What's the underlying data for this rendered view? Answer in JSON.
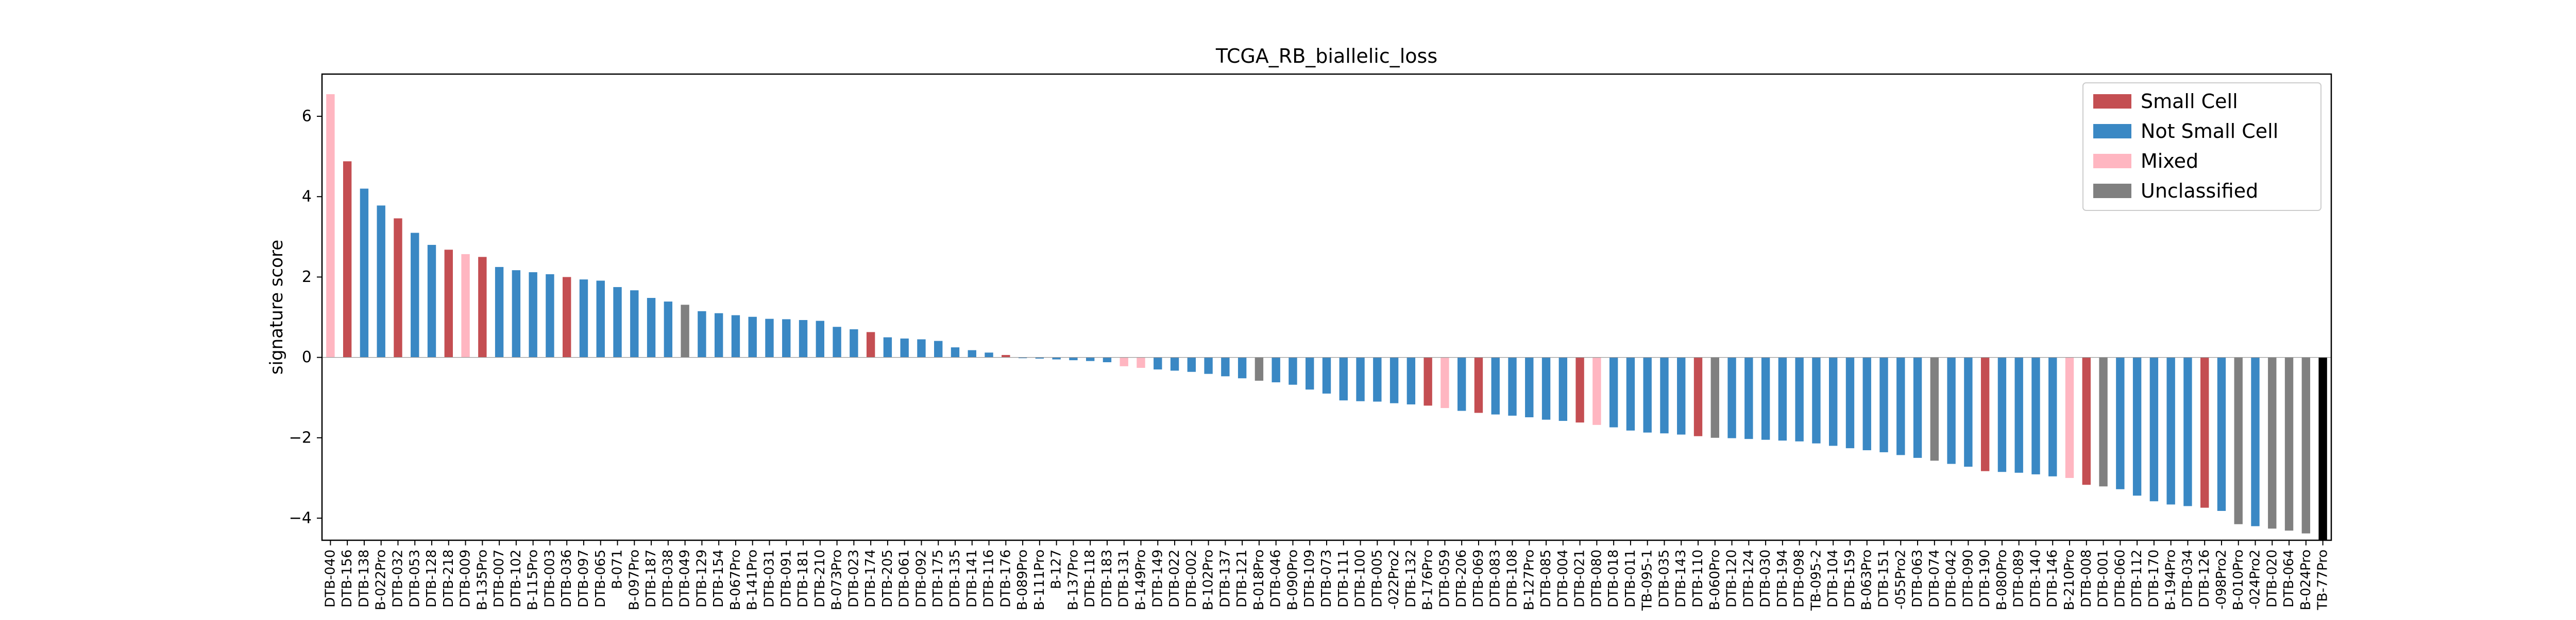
{
  "chart_data": {
    "type": "bar",
    "title": "TCGA_RB_biallelic_loss",
    "xlabel": "",
    "ylabel": "signature score",
    "ylim": [
      -4.55,
      7.05
    ],
    "yticks": [
      -4,
      -2,
      0,
      2,
      4,
      6
    ],
    "grid": false,
    "legend_position": "top-right",
    "legend": [
      {
        "label": "Small Cell",
        "color": "#c44e52"
      },
      {
        "label": "Not Small Cell",
        "color": "#3a88c4"
      },
      {
        "label": "Mixed",
        "color": "#ffb6c1"
      },
      {
        "label": "Unclassified",
        "color": "#808080"
      }
    ],
    "colors": {
      "small_cell": "#c44e52",
      "not_small_cell": "#3a88c4",
      "mixed": "#ffb6c1",
      "unclassified": "#808080"
    },
    "categories": [
      "DTB-040",
      "DTB-156",
      "DTB-138",
      "B-022Pro",
      "DTB-032",
      "DTB-053",
      "DTB-128",
      "DTB-218",
      "DTB-009",
      "B-135Pro",
      "DTB-007",
      "DTB-102",
      "B-115Pro",
      "DTB-003",
      "DTB-036",
      "DTB-097",
      "DTB-065",
      "B-071",
      "B-097Pro",
      "DTB-187",
      "DTB-038",
      "DTB-049",
      "DTB-129",
      "DTB-154",
      "B-067Pro",
      "B-141Pro",
      "DTB-031",
      "DTB-091",
      "DTB-181",
      "DTB-210",
      "B-073Pro",
      "DTB-023",
      "DTB-174",
      "DTB-205",
      "DTB-061",
      "DTB-092",
      "DTB-175",
      "DTB-135",
      "DTB-141",
      "DTB-116",
      "DTB-176",
      "B-089Pro",
      "B-111Pro",
      "B-127",
      "B-137Pro",
      "DTB-118",
      "DTB-183",
      "DTB-131",
      "B-149Pro",
      "DTB-149",
      "DTB-022",
      "DTB-002",
      "B-102Pro",
      "DTB-137",
      "DTB-121",
      "B-018Pro",
      "DTB-046",
      "B-090Pro",
      "DTB-109",
      "DTB-073",
      "DTB-111",
      "DTB-100",
      "DTB-005",
      "-022Pro2",
      "DTB-132",
      "B-176Pro",
      "DTB-059",
      "DTB-206",
      "DTB-069",
      "DTB-083",
      "DTB-108",
      "B-127Pro",
      "DTB-085",
      "DTB-004",
      "DTB-021",
      "DTB-080",
      "DTB-018",
      "DTB-011",
      "TB-095-1",
      "DTB-035",
      "DTB-143",
      "DTB-110",
      "B-060Pro",
      "DTB-120",
      "DTB-124",
      "DTB-030",
      "DTB-194",
      "DTB-098",
      "TB-095-2",
      "DTB-104",
      "DTB-159",
      "B-063Pro",
      "DTB-151",
      "-055Pro2",
      "DTB-063",
      "DTB-074",
      "DTB-042",
      "DTB-090",
      "DTB-190",
      "B-080Pro",
      "DTB-089",
      "DTB-140",
      "DTB-146",
      "B-210Pro",
      "DTB-008",
      "DTB-001",
      "DTB-060",
      "DTB-112",
      "DTB-170",
      "B-194Pro",
      "DTB-034",
      "DTB-126",
      "-098Pro2",
      "B-010Pro",
      "-024Pro2",
      "DTB-020",
      "DTB-064",
      "B-024Pro",
      "TB-77Pro"
    ],
    "values": [
      6.55,
      4.88,
      4.2,
      3.78,
      3.46,
      3.1,
      2.8,
      2.68,
      2.57,
      2.5,
      2.25,
      2.17,
      2.12,
      2.07,
      2.0,
      1.94,
      1.91,
      1.75,
      1.67,
      1.48,
      1.39,
      1.31,
      1.15,
      1.1,
      1.05,
      1.01,
      0.96,
      0.95,
      0.93,
      0.91,
      0.76,
      0.7,
      0.63,
      0.5,
      0.47,
      0.45,
      0.41,
      0.25,
      0.18,
      0.12,
      0.06,
      -0.02,
      -0.03,
      -0.05,
      -0.07,
      -0.09,
      -0.12,
      -0.22,
      -0.26,
      -0.3,
      -0.33,
      -0.36,
      -0.41,
      -0.47,
      -0.52,
      -0.58,
      -0.62,
      -0.68,
      -0.8,
      -0.9,
      -1.07,
      -1.09,
      -1.1,
      -1.14,
      -1.17,
      -1.2,
      -1.26,
      -1.33,
      -1.38,
      -1.42,
      -1.45,
      -1.49,
      -1.55,
      -1.58,
      -1.62,
      -1.68,
      -1.74,
      -1.82,
      -1.87,
      -1.89,
      -1.92,
      -1.96,
      -2.0,
      -2.01,
      -2.03,
      -2.05,
      -2.07,
      -2.09,
      -2.14,
      -2.2,
      -2.26,
      -2.31,
      -2.36,
      -2.43,
      -2.5,
      -2.57,
      -2.65,
      -2.72,
      -2.83,
      -2.85,
      -2.87,
      -2.91,
      -2.96,
      -3.0,
      -3.17,
      -3.21,
      -3.28,
      -3.44,
      -3.58,
      -3.66,
      -3.7,
      -3.74,
      -3.82,
      -4.15,
      -4.2,
      -4.26,
      -4.31,
      -4.38,
      -4.55
    ],
    "groups": [
      "mixed",
      "small_cell",
      "not_small_cell",
      "not_small_cell",
      "small_cell",
      "not_small_cell",
      "not_small_cell",
      "small_cell",
      "mixed",
      "small_cell",
      "not_small_cell",
      "not_small_cell",
      "not_small_cell",
      "not_small_cell",
      "small_cell",
      "not_small_cell",
      "not_small_cell",
      "not_small_cell",
      "not_small_cell",
      "not_small_cell",
      "not_small_cell",
      "unclassified",
      "not_small_cell",
      "not_small_cell",
      "not_small_cell",
      "not_small_cell",
      "not_small_cell",
      "not_small_cell",
      "not_small_cell",
      "not_small_cell",
      "not_small_cell",
      "not_small_cell",
      "small_cell",
      "not_small_cell",
      "not_small_cell",
      "not_small_cell",
      "not_small_cell",
      "not_small_cell",
      "not_small_cell",
      "not_small_cell",
      "small_cell",
      "not_small_cell",
      "not_small_cell",
      "not_small_cell",
      "not_small_cell",
      "not_small_cell",
      "not_small_cell",
      "mixed",
      "mixed",
      "not_small_cell",
      "not_small_cell",
      "not_small_cell",
      "not_small_cell",
      "not_small_cell",
      "not_small_cell",
      "unclassified",
      "not_small_cell",
      "not_small_cell",
      "not_small_cell",
      "not_small_cell",
      "not_small_cell",
      "not_small_cell",
      "not_small_cell",
      "not_small_cell",
      "not_small_cell",
      "small_cell",
      "mixed",
      "not_small_cell",
      "small_cell",
      "not_small_cell",
      "not_small_cell",
      "not_small_cell",
      "not_small_cell",
      "not_small_cell",
      "small_cell",
      "mixed",
      "not_small_cell",
      "not_small_cell",
      "not_small_cell",
      "not_small_cell",
      "not_small_cell",
      "small_cell",
      "unclassified",
      "not_small_cell",
      "not_small_cell",
      "not_small_cell",
      "not_small_cell",
      "not_small_cell",
      "not_small_cell",
      "not_small_cell",
      "not_small_cell",
      "not_small_cell",
      "not_small_cell",
      "not_small_cell",
      "not_small_cell",
      "unclassified",
      "not_small_cell",
      "not_small_cell",
      "small_cell",
      "not_small_cell",
      "not_small_cell",
      "not_small_cell",
      "not_small_cell",
      "mixed",
      "small_cell",
      "unclassified",
      "not_small_cell",
      "not_small_cell",
      "not_small_cell",
      "not_small_cell",
      "not_small_cell",
      "small_cell",
      "not_small_cell",
      "unclassified",
      "not_small_cell",
      "unclassified",
      "unclassified",
      "unclassified"
    ]
  }
}
